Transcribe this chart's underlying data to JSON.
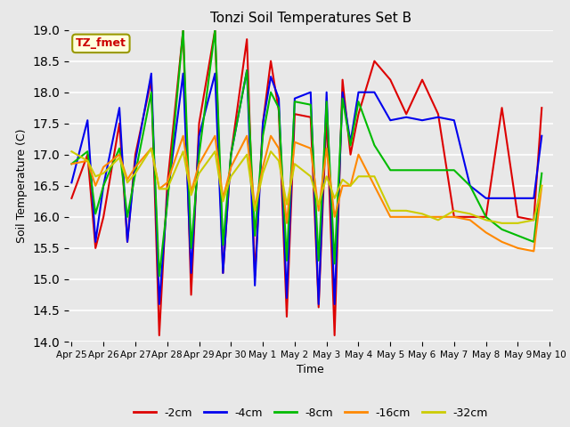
{
  "title": "Tonzi Soil Temperatures Set B",
  "xlabel": "Time",
  "ylabel": "Soil Temperature (C)",
  "ylim": [
    14.0,
    19.0
  ],
  "yticks": [
    14.0,
    14.5,
    15.0,
    15.5,
    16.0,
    16.5,
    17.0,
    17.5,
    18.0,
    18.5,
    19.0
  ],
  "bg_color": "#e8e8e8",
  "annotation_text": "TZ_fmet",
  "annotation_color": "#cc0000",
  "annotation_bg": "#ffffdd",
  "annotation_edge": "#999900",
  "series": {
    "-2cm": {
      "color": "#dd0000",
      "x": [
        0,
        0.5,
        0.75,
        1.0,
        1.5,
        1.75,
        2.0,
        2.5,
        2.75,
        3.0,
        3.5,
        3.75,
        4.0,
        4.5,
        4.75,
        5.0,
        5.5,
        5.75,
        6.0,
        6.25,
        6.5,
        6.75,
        7.0,
        7.5,
        7.75,
        8.0,
        8.25,
        8.5,
        8.75,
        9.0,
        9.5,
        10.0,
        10.5,
        11.0,
        11.5,
        12.0,
        12.5,
        13.0,
        13.5,
        14.0,
        14.5,
        14.75
      ],
      "y": [
        16.3,
        17.0,
        15.5,
        16.0,
        17.5,
        15.6,
        17.0,
        18.2,
        14.1,
        16.5,
        19.0,
        14.75,
        17.5,
        19.0,
        15.1,
        17.0,
        18.85,
        15.05,
        17.5,
        18.5,
        17.7,
        14.4,
        17.65,
        17.6,
        14.55,
        17.65,
        14.1,
        18.2,
        17.0,
        17.65,
        18.5,
        18.2,
        17.65,
        18.2,
        17.65,
        16.0,
        16.0,
        16.0,
        17.75,
        16.0,
        15.95,
        17.75
      ]
    },
    "-4cm": {
      "color": "#0000ee",
      "x": [
        0,
        0.5,
        0.75,
        1.0,
        1.5,
        1.75,
        2.0,
        2.5,
        2.75,
        3.0,
        3.5,
        3.75,
        4.0,
        4.5,
        4.75,
        5.0,
        5.5,
        5.75,
        6.0,
        6.25,
        6.5,
        6.75,
        7.0,
        7.5,
        7.75,
        8.0,
        8.25,
        8.5,
        8.75,
        9.0,
        9.5,
        10.0,
        10.5,
        11.0,
        11.5,
        12.0,
        12.5,
        13.0,
        13.5,
        14.0,
        14.5,
        14.75
      ],
      "y": [
        16.55,
        17.55,
        15.6,
        16.5,
        17.75,
        15.6,
        16.9,
        18.3,
        14.6,
        16.3,
        18.3,
        15.1,
        17.3,
        18.3,
        15.1,
        17.0,
        18.35,
        14.9,
        17.5,
        18.25,
        17.9,
        14.7,
        17.9,
        18.0,
        14.6,
        18.0,
        14.6,
        18.0,
        17.2,
        18.0,
        18.0,
        17.55,
        17.6,
        17.55,
        17.6,
        17.55,
        16.5,
        16.3,
        16.3,
        16.3,
        16.3,
        17.3
      ]
    },
    "-8cm": {
      "color": "#00bb00",
      "x": [
        0,
        0.5,
        0.75,
        1.0,
        1.5,
        1.75,
        2.0,
        2.5,
        2.75,
        3.0,
        3.5,
        3.75,
        4.0,
        4.5,
        4.75,
        5.0,
        5.5,
        5.75,
        6.0,
        6.25,
        6.5,
        6.75,
        7.0,
        7.5,
        7.75,
        8.0,
        8.25,
        8.5,
        8.75,
        9.0,
        9.5,
        10.0,
        10.5,
        11.0,
        11.5,
        12.0,
        12.5,
        13.0,
        13.5,
        14.0,
        14.5,
        14.75
      ],
      "y": [
        16.85,
        17.05,
        16.05,
        16.5,
        17.1,
        16.0,
        16.7,
        18.0,
        15.05,
        16.2,
        19.0,
        15.5,
        17.0,
        19.0,
        15.55,
        17.0,
        18.35,
        15.7,
        17.3,
        18.0,
        17.75,
        15.3,
        17.85,
        17.8,
        15.3,
        17.85,
        15.25,
        17.9,
        17.15,
        17.85,
        17.15,
        16.75,
        16.75,
        16.75,
        16.75,
        16.75,
        16.5,
        16.0,
        15.8,
        15.7,
        15.6,
        16.7
      ]
    },
    "-16cm": {
      "color": "#ff8800",
      "x": [
        0,
        0.5,
        0.75,
        1.0,
        1.5,
        1.75,
        2.0,
        2.5,
        2.75,
        3.0,
        3.5,
        3.75,
        4.0,
        4.5,
        4.75,
        5.0,
        5.5,
        5.75,
        6.0,
        6.25,
        6.5,
        6.75,
        7.0,
        7.5,
        7.75,
        8.0,
        8.25,
        8.5,
        8.75,
        9.0,
        9.5,
        10.0,
        10.5,
        11.0,
        11.5,
        12.0,
        12.5,
        13.0,
        13.5,
        14.0,
        14.5,
        14.75
      ],
      "y": [
        16.85,
        16.9,
        16.5,
        16.8,
        17.0,
        16.6,
        16.8,
        17.1,
        16.45,
        16.55,
        17.3,
        16.4,
        16.85,
        17.3,
        16.3,
        16.8,
        17.3,
        16.15,
        16.8,
        17.3,
        17.1,
        15.9,
        17.2,
        17.1,
        16.1,
        17.1,
        16.0,
        16.5,
        16.5,
        17.0,
        16.5,
        16.0,
        16.0,
        16.0,
        16.0,
        16.0,
        15.95,
        15.75,
        15.6,
        15.5,
        15.45,
        16.5
      ]
    },
    "-32cm": {
      "color": "#cccc00",
      "x": [
        0,
        0.5,
        0.75,
        1.0,
        1.5,
        1.75,
        2.0,
        2.5,
        2.75,
        3.0,
        3.5,
        3.75,
        4.0,
        4.5,
        4.75,
        5.0,
        5.5,
        5.75,
        6.0,
        6.25,
        6.5,
        6.75,
        7.0,
        7.5,
        7.75,
        8.0,
        8.25,
        8.5,
        8.75,
        9.0,
        9.5,
        10.0,
        10.5,
        11.0,
        11.5,
        12.0,
        12.5,
        13.0,
        13.5,
        14.0,
        14.5,
        14.75
      ],
      "y": [
        17.05,
        16.9,
        16.65,
        16.7,
        16.95,
        16.55,
        16.7,
        17.1,
        16.45,
        16.45,
        17.05,
        16.35,
        16.7,
        17.05,
        16.25,
        16.65,
        17.0,
        16.1,
        16.7,
        17.05,
        16.9,
        16.2,
        16.85,
        16.65,
        16.2,
        16.65,
        16.3,
        16.6,
        16.5,
        16.65,
        16.65,
        16.1,
        16.1,
        16.05,
        15.95,
        16.1,
        16.05,
        15.95,
        15.9,
        15.9,
        15.95,
        16.5
      ]
    }
  },
  "xtick_positions": [
    0,
    1,
    2,
    3,
    4,
    5,
    6,
    7,
    8,
    9,
    10,
    11,
    12,
    13,
    14,
    15
  ],
  "xtick_labels": [
    "Apr 25",
    "Apr 26",
    "Apr 27",
    "Apr 28",
    "Apr 29",
    "Apr 30",
    "May 1",
    "May 2",
    "May 3",
    "May 4",
    "May 5",
    "May 6",
    "May 7",
    "May 8",
    "May 9",
    "May 10"
  ],
  "legend_order": [
    "-2cm",
    "-4cm",
    "-8cm",
    "-16cm",
    "-32cm"
  ]
}
